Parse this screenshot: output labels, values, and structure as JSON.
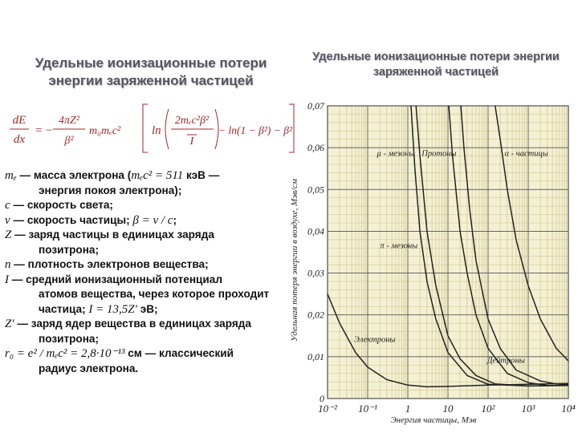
{
  "left": {
    "title_line1": "Удельные ионизационные потери",
    "title_line2": "энергии заряженной частицей",
    "formula": {
      "lhs_num": "dE",
      "lhs_den": "dx",
      "eq": "=",
      "minus": "−",
      "coef_num": "4πZ²",
      "coef_den": "β²",
      "coef_rest": "m₀mₑc²",
      "ln": "ln",
      "inner_num": "2mₑc²β²",
      "inner_den": "I",
      "tail": "− ln(1 − β²) − β²"
    },
    "definitions": [
      {
        "sym": "mₑ",
        "text": " — масса электрона (",
        "sym2": "mₑc² = 511",
        "text2": " кэВ —"
      },
      {
        "sym": "",
        "text": "энергия покоя электрона);"
      },
      {
        "sym": "c",
        "text": " — скорость света;"
      },
      {
        "sym": "v",
        "text": " — скорость частицы; ",
        "sym2": "β = v / c",
        "text2": ";"
      },
      {
        "sym": "Z",
        "text": " — заряд частицы в единицах заряда"
      },
      {
        "sym": "",
        "text": "позитрона;"
      },
      {
        "sym": "n",
        "text": " — плотность электронов вещества;"
      },
      {
        "sym": "I",
        "text": " — средний ионизационный потенциал"
      },
      {
        "sym": "",
        "text": "атомов вещества, через которое проходит"
      },
      {
        "sym": "",
        "text": "частица; ",
        "sym2": "I = 13,5Z′",
        "text2": " эВ;"
      },
      {
        "sym": "Z′",
        "text": " — заряд ядер вещества в единицах заряда"
      },
      {
        "sym": "",
        "text": "позитрона;"
      },
      {
        "sym": "r₀ = e² / mₑc² = 2,8·10⁻¹³",
        "text": " см — классический"
      },
      {
        "sym": "",
        "text": "радиус электрона."
      }
    ]
  },
  "right": {
    "title_line1": "Удельные ионизационные потери энергии",
    "title_line2": "заряженной частицей"
  },
  "chart_data": {
    "type": "line",
    "title": "",
    "ylabel": "Удельная потеря энергии в воздухе, Мэв/см",
    "xlabel": "Энергия частицы, Мэв",
    "x_scale": "log",
    "x_ticks": [
      "10⁻²",
      "10⁻¹",
      "1",
      "10",
      "10²",
      "10³",
      "10⁴"
    ],
    "y_ticks": [
      "0",
      "0,01",
      "0,02",
      "0,03",
      "0,04",
      "0,05",
      "0,06",
      "0,07"
    ],
    "xlim": [
      0.01,
      10000
    ],
    "ylim": [
      0,
      0.07
    ],
    "grid": true,
    "colors": {
      "background": "#f4f0d3",
      "grid": "#c9bf85",
      "curve": "#222222"
    },
    "series": [
      {
        "name": "Электроны",
        "x": [
          0.01,
          0.02,
          0.05,
          0.1,
          0.3,
          1,
          3,
          10,
          100,
          1000,
          10000
        ],
        "y": [
          0.025,
          0.018,
          0.011,
          0.0075,
          0.0045,
          0.0032,
          0.0028,
          0.0029,
          0.0032,
          0.0034,
          0.0036
        ]
      },
      {
        "name": "μ-мезоны",
        "x": [
          1.2,
          1.5,
          2,
          3,
          5,
          10,
          30,
          100,
          1000,
          10000
        ],
        "y": [
          0.07,
          0.055,
          0.04,
          0.028,
          0.019,
          0.011,
          0.0055,
          0.0034,
          0.003,
          0.0032
        ]
      },
      {
        "name": "π-мезоны",
        "x": [
          1.6,
          2,
          3,
          5,
          10,
          20,
          50,
          150,
          1000,
          10000
        ],
        "y": [
          0.07,
          0.058,
          0.04,
          0.027,
          0.015,
          0.0095,
          0.0055,
          0.0035,
          0.003,
          0.0031
        ]
      },
      {
        "name": "Протоны",
        "x": [
          10.5,
          13,
          20,
          30,
          50,
          100,
          300,
          1000,
          3000,
          10000
        ],
        "y": [
          0.07,
          0.058,
          0.04,
          0.03,
          0.02,
          0.012,
          0.006,
          0.0038,
          0.0031,
          0.0031
        ]
      },
      {
        "name": "Дейтроны",
        "x": [
          21,
          25,
          35,
          50,
          100,
          200,
          500,
          2000,
          5000,
          10000
        ],
        "y": [
          0.07,
          0.06,
          0.045,
          0.033,
          0.019,
          0.012,
          0.0068,
          0.0042,
          0.0035,
          0.0033
        ]
      },
      {
        "name": "α-частицы",
        "x": [
          150,
          200,
          300,
          500,
          1000,
          2000,
          5000,
          10000
        ],
        "y": [
          0.07,
          0.062,
          0.05,
          0.038,
          0.027,
          0.019,
          0.012,
          0.009
        ]
      }
    ],
    "labels": [
      {
        "text": "μ - мезоны",
        "x": 0.5,
        "y": 0.058
      },
      {
        "text": "Протоны",
        "x": 6,
        "y": 0.058
      },
      {
        "text": "α - частицы",
        "x": 900,
        "y": 0.058
      },
      {
        "text": "π - мезоны",
        "x": 0.6,
        "y": 0.036
      },
      {
        "text": "Электроны",
        "x": 0.15,
        "y": 0.0135
      },
      {
        "text": "Дейтроны",
        "x": 280,
        "y": 0.0085
      }
    ]
  }
}
